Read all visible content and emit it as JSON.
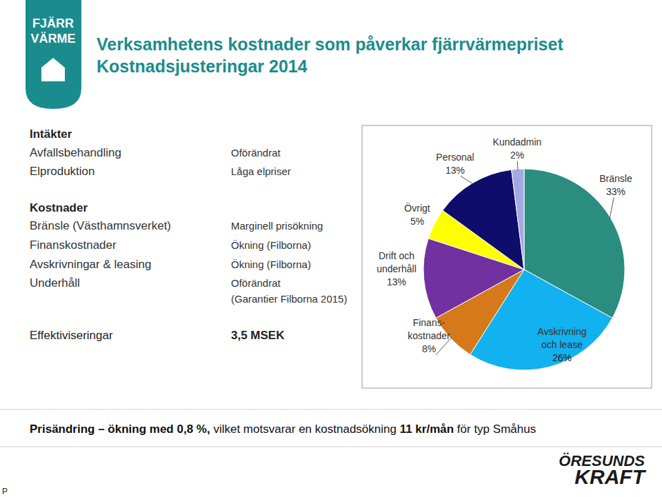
{
  "header": {
    "logo_lines": [
      "FJÄRR",
      "VÄRME"
    ],
    "title": "Verksamhetens kostnader som påverkar fjärrvärmepriset",
    "subtitle": "Kostnadsjusteringar 2014"
  },
  "table": {
    "sections": [
      {
        "heading": "Intäkter",
        "rows": [
          [
            "Avfallsbehandling",
            "Oförändrat"
          ],
          [
            "Elproduktion",
            "Låga elpriser"
          ]
        ]
      },
      {
        "heading": "Kostnader",
        "rows": [
          [
            "Bränsle (Västhamnsverket)",
            "Marginell prisökning"
          ],
          [
            "Finanskostnader",
            "Ökning (Filborna)"
          ],
          [
            "Avskrivningar & leasing",
            "Ökning (Filborna)"
          ],
          [
            "Underhåll",
            "Oförändrat",
            "(Garantier Filborna 2015)"
          ]
        ]
      }
    ],
    "efficiency": [
      "Effektiviseringar",
      "3,5 MSEK"
    ]
  },
  "footer": {
    "summary": [
      {
        "text": "Prisändring – ökning med 0,8 %,",
        "bold": true
      },
      {
        "text": " vilket motsvarar en kostnadsökning ",
        "bold": false
      },
      {
        "text": "11 kr/mån",
        "bold": true
      },
      {
        "text": " för typ Småhus",
        "bold": false
      }
    ],
    "logo_lines": [
      "ÖRESUNDS",
      "KRAFT"
    ],
    "page_mark": "P"
  },
  "chart_data": {
    "type": "pie",
    "categories": [
      "Bränsle",
      "Avskrivning och lease",
      "Finans-kostnader",
      "Drift och underhåll",
      "Övrigt",
      "Personal",
      "Kundadmin"
    ],
    "values": [
      33,
      26,
      8,
      13,
      5,
      13,
      2
    ],
    "value_labels": [
      "33%",
      "26%",
      "8%",
      "13%",
      "5%",
      "13%",
      "2%"
    ],
    "colors": [
      "#2b8c80",
      "#12b1f0",
      "#d5791b",
      "#7231a0",
      "#ffff00",
      "#0e0d6b",
      "#a3a9e0"
    ],
    "data_labels": true
  }
}
